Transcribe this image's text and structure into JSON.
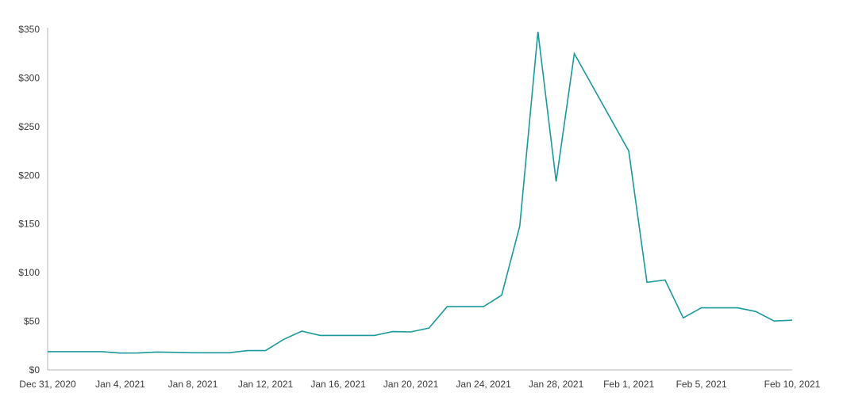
{
  "chart_data": {
    "type": "line",
    "title": "",
    "xlabel": "",
    "ylabel": "",
    "ylim": [
      0,
      350
    ],
    "xlim": [
      "2020-12-31",
      "2021-02-10"
    ],
    "grid": false,
    "legend": "none",
    "y_ticks": [
      {
        "value": 0,
        "label": "$0"
      },
      {
        "value": 50,
        "label": "$50"
      },
      {
        "value": 100,
        "label": "$100"
      },
      {
        "value": 150,
        "label": "$150"
      },
      {
        "value": 200,
        "label": "$200"
      },
      {
        "value": 250,
        "label": "$250"
      },
      {
        "value": 300,
        "label": "$300"
      },
      {
        "value": 350,
        "label": "$350"
      }
    ],
    "x_ticks": [
      {
        "date": "2020-12-31",
        "label": "Dec 31, 2020"
      },
      {
        "date": "2021-01-04",
        "label": "Jan 4, 2021"
      },
      {
        "date": "2021-01-08",
        "label": "Jan 8, 2021"
      },
      {
        "date": "2021-01-12",
        "label": "Jan 12, 2021"
      },
      {
        "date": "2021-01-16",
        "label": "Jan 16, 2021"
      },
      {
        "date": "2021-01-20",
        "label": "Jan 20, 2021"
      },
      {
        "date": "2021-01-24",
        "label": "Jan 24, 2021"
      },
      {
        "date": "2021-01-28",
        "label": "Jan 28, 2021"
      },
      {
        "date": "2021-02-01",
        "label": "Feb 1, 2021"
      },
      {
        "date": "2021-02-05",
        "label": "Feb 5, 2021"
      },
      {
        "date": "2021-02-10",
        "label": "Feb 10, 2021"
      }
    ],
    "series": [
      {
        "color": "#1a9a9c",
        "points": [
          {
            "x": "2020-12-31",
            "y": 18.8
          },
          {
            "x": "2021-01-01",
            "y": 18.8
          },
          {
            "x": "2021-01-02",
            "y": 18.8
          },
          {
            "x": "2021-01-03",
            "y": 18.8
          },
          {
            "x": "2021-01-04",
            "y": 17.3
          },
          {
            "x": "2021-01-05",
            "y": 17.4
          },
          {
            "x": "2021-01-06",
            "y": 18.4
          },
          {
            "x": "2021-01-07",
            "y": 18.1
          },
          {
            "x": "2021-01-08",
            "y": 17.7
          },
          {
            "x": "2021-01-09",
            "y": 17.7
          },
          {
            "x": "2021-01-10",
            "y": 17.7
          },
          {
            "x": "2021-01-11",
            "y": 19.9
          },
          {
            "x": "2021-01-12",
            "y": 19.9
          },
          {
            "x": "2021-01-13",
            "y": 31.4
          },
          {
            "x": "2021-01-14",
            "y": 39.9
          },
          {
            "x": "2021-01-15",
            "y": 35.5
          },
          {
            "x": "2021-01-16",
            "y": 35.5
          },
          {
            "x": "2021-01-17",
            "y": 35.5
          },
          {
            "x": "2021-01-18",
            "y": 35.5
          },
          {
            "x": "2021-01-19",
            "y": 39.4
          },
          {
            "x": "2021-01-20",
            "y": 39.1
          },
          {
            "x": "2021-01-21",
            "y": 43.0
          },
          {
            "x": "2021-01-22",
            "y": 65.0
          },
          {
            "x": "2021-01-23",
            "y": 65.0
          },
          {
            "x": "2021-01-24",
            "y": 65.0
          },
          {
            "x": "2021-01-25",
            "y": 76.8
          },
          {
            "x": "2021-01-26",
            "y": 148.0
          },
          {
            "x": "2021-01-27",
            "y": 347.5
          },
          {
            "x": "2021-01-28",
            "y": 193.6
          },
          {
            "x": "2021-01-29",
            "y": 325.0
          },
          {
            "x": "2021-02-01",
            "y": 225.0
          },
          {
            "x": "2021-02-02",
            "y": 90.0
          },
          {
            "x": "2021-02-03",
            "y": 92.4
          },
          {
            "x": "2021-02-04",
            "y": 53.5
          },
          {
            "x": "2021-02-05",
            "y": 63.8
          },
          {
            "x": "2021-02-06",
            "y": 63.8
          },
          {
            "x": "2021-02-07",
            "y": 63.8
          },
          {
            "x": "2021-02-08",
            "y": 60.0
          },
          {
            "x": "2021-02-09",
            "y": 50.3
          },
          {
            "x": "2021-02-10",
            "y": 51.1
          }
        ]
      }
    ]
  }
}
